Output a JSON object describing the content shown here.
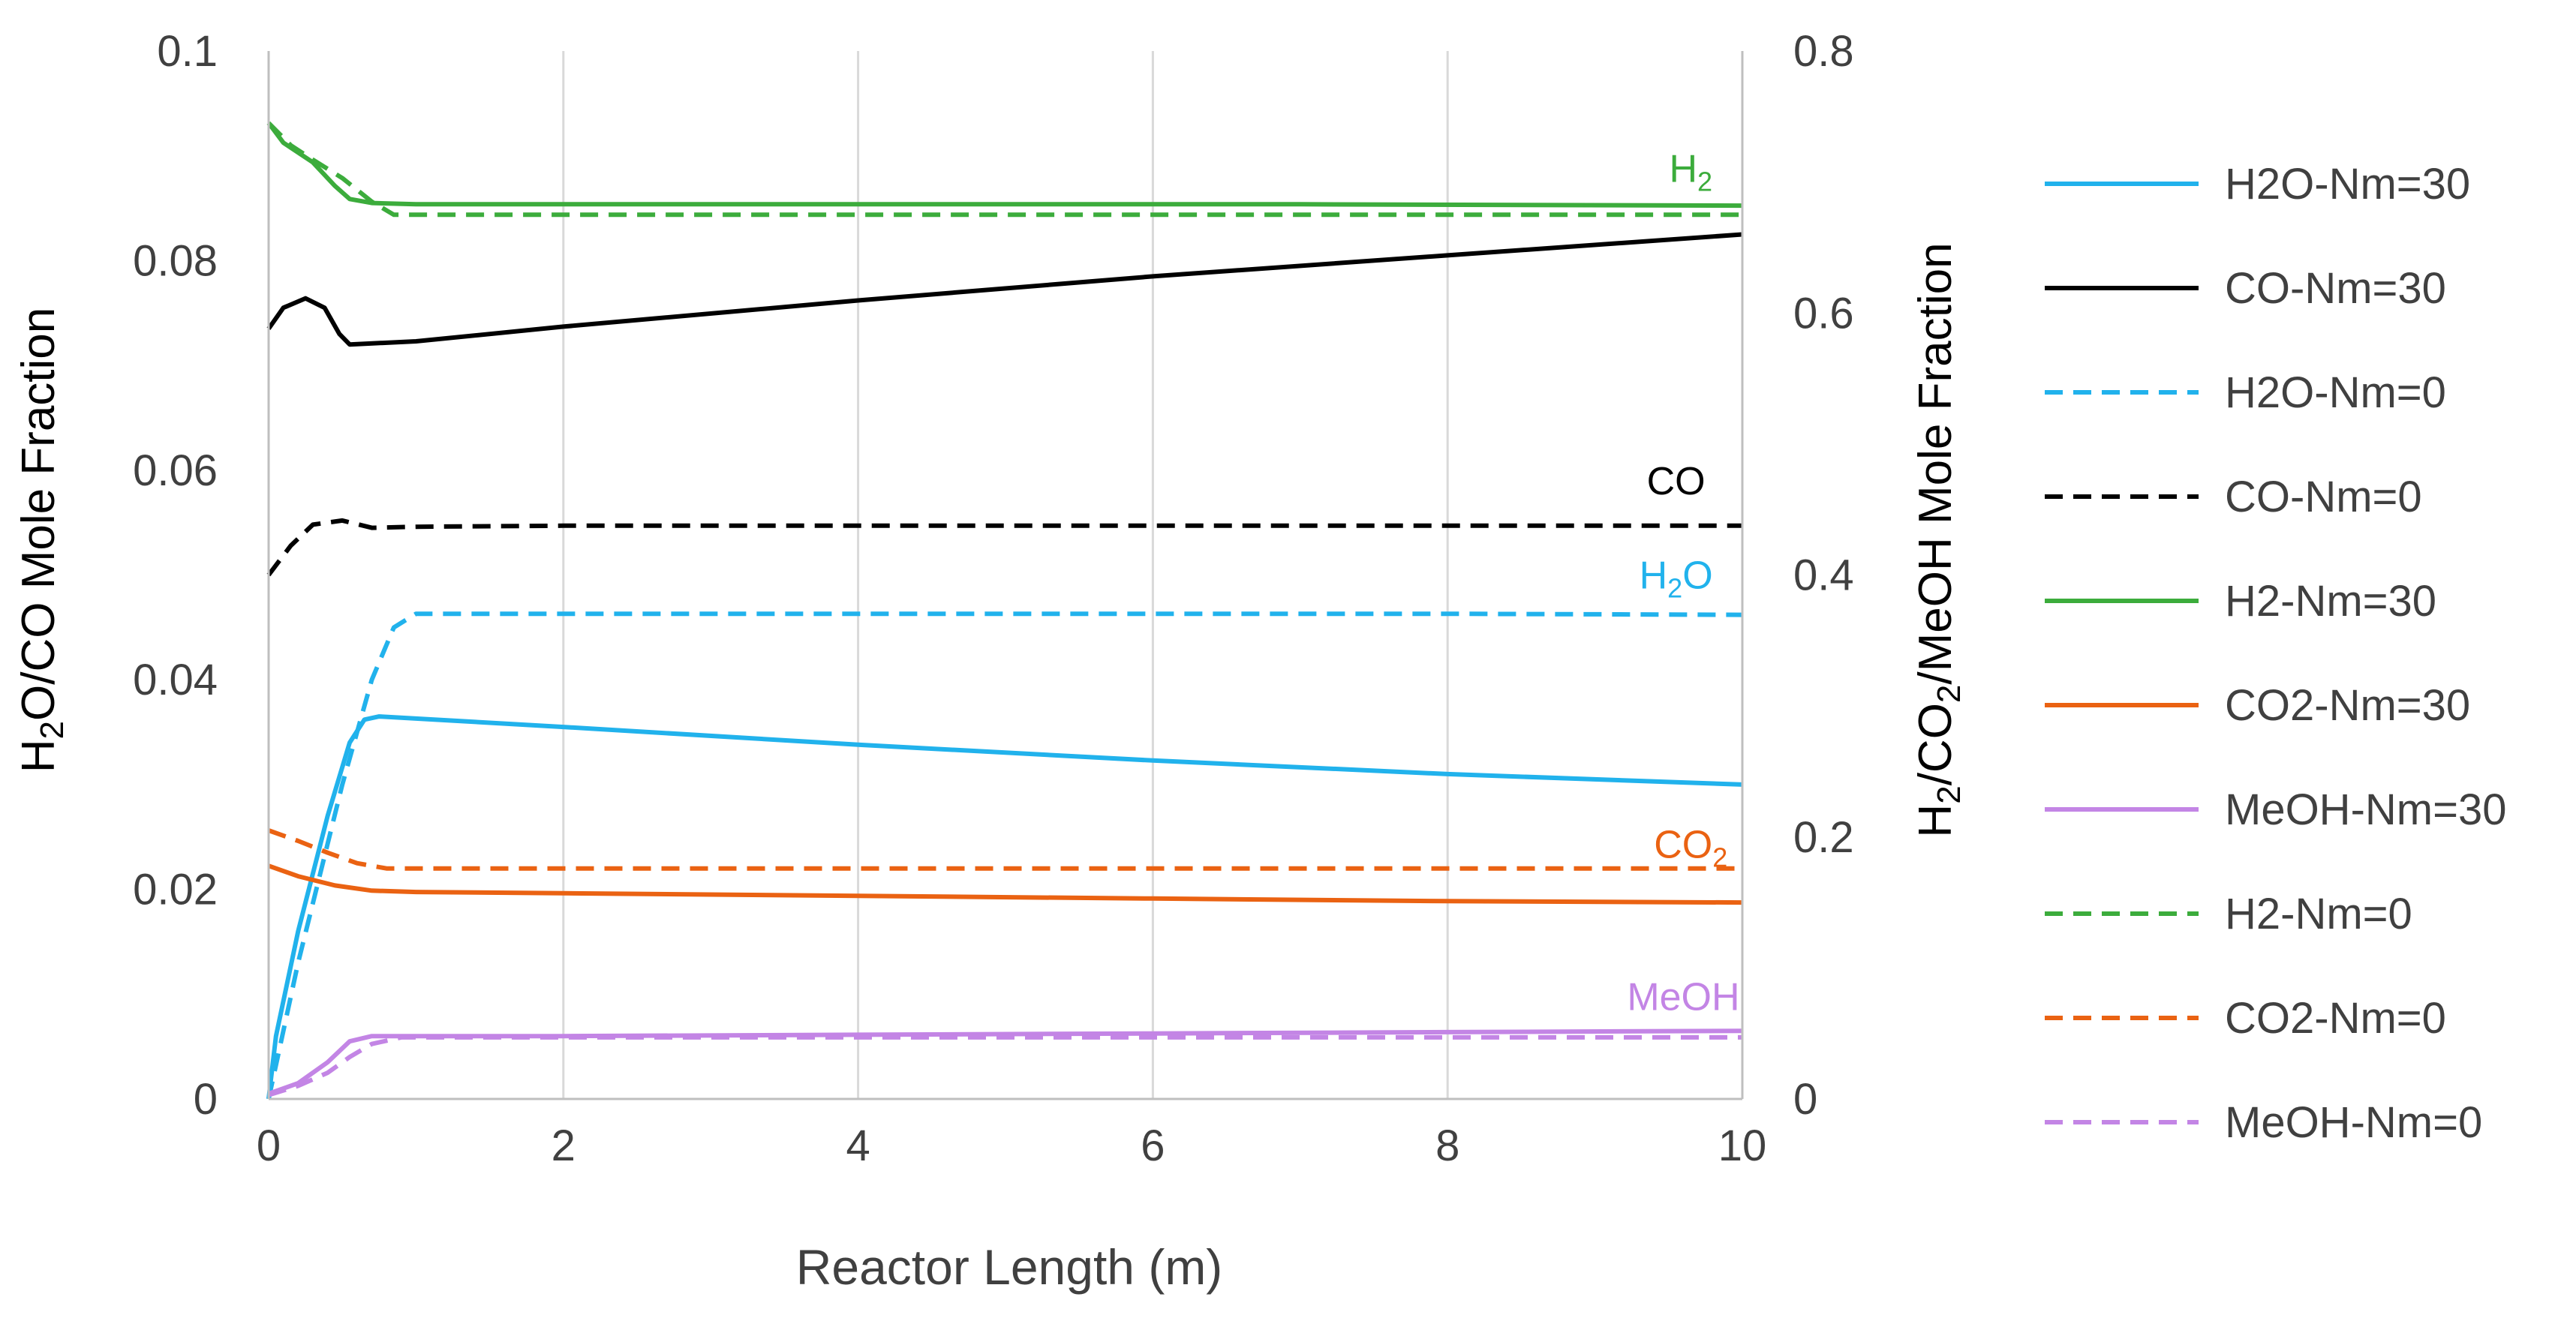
{
  "chart_data": {
    "type": "line",
    "xlabel": "Reactor Length (m)",
    "ylabel_left": {
      "main": "H",
      "sub1": "2",
      "mid": "O/CO  Mole Fraction"
    },
    "ylabel_right": {
      "p1": "H",
      "s1": "2",
      "p2": "/CO",
      "s2": "2",
      "p3": "/MeOH Mole Fraction"
    },
    "xlim": [
      0,
      10
    ],
    "ylim_left": [
      0,
      0.1
    ],
    "ylim_right": [
      0,
      0.8
    ],
    "x_ticks": [
      0,
      2,
      4,
      6,
      8,
      10
    ],
    "x_tick_labels": [
      "0",
      "2",
      "4",
      "6",
      "8",
      "10"
    ],
    "y_left_ticks": [
      0,
      0.02,
      0.04,
      0.06,
      0.08,
      0.1
    ],
    "y_left_tick_labels": [
      "0",
      "0.02",
      "0.04",
      "0.06",
      "0.08",
      "0.1"
    ],
    "y_right_ticks": [
      0,
      0.2,
      0.4,
      0.6,
      0.8
    ],
    "y_right_tick_labels": [
      "0",
      "0.2",
      "0.4",
      "0.6",
      "0.8"
    ],
    "grid": "vertical",
    "legend_position": "right",
    "series": [
      {
        "name": "H2O-Nm=30",
        "axis": "left",
        "color": "#21b2ec",
        "dash": false,
        "points": [
          [
            0,
            0
          ],
          [
            0.05,
            0.006
          ],
          [
            0.2,
            0.016
          ],
          [
            0.4,
            0.027
          ],
          [
            0.55,
            0.034
          ],
          [
            0.65,
            0.0362
          ],
          [
            0.75,
            0.0365
          ],
          [
            2,
            0.0355
          ],
          [
            4,
            0.0338
          ],
          [
            6,
            0.0323
          ],
          [
            8,
            0.031
          ],
          [
            10,
            0.03
          ]
        ]
      },
      {
        "name": "CO-Nm=30",
        "axis": "left",
        "color": "#000000",
        "dash": false,
        "points": [
          [
            0,
            0.0735
          ],
          [
            0.1,
            0.0755
          ],
          [
            0.25,
            0.0764
          ],
          [
            0.38,
            0.0755
          ],
          [
            0.48,
            0.073
          ],
          [
            0.55,
            0.072
          ],
          [
            1,
            0.0723
          ],
          [
            2,
            0.0737
          ],
          [
            4,
            0.0762
          ],
          [
            6,
            0.0785
          ],
          [
            8,
            0.0805
          ],
          [
            10,
            0.0825
          ]
        ]
      },
      {
        "name": "H2O-Nm=0",
        "axis": "left",
        "color": "#21b2ec",
        "dash": true,
        "points": [
          [
            0,
            0
          ],
          [
            0.2,
            0.013
          ],
          [
            0.5,
            0.03
          ],
          [
            0.7,
            0.04
          ],
          [
            0.85,
            0.045
          ],
          [
            1,
            0.0463
          ],
          [
            2,
            0.0463
          ],
          [
            4,
            0.0463
          ],
          [
            6,
            0.0463
          ],
          [
            8,
            0.0463
          ],
          [
            10,
            0.0462
          ]
        ]
      },
      {
        "name": "CO-Nm=0",
        "axis": "left",
        "color": "#000000",
        "dash": true,
        "points": [
          [
            0,
            0.05
          ],
          [
            0.15,
            0.0528
          ],
          [
            0.3,
            0.0548
          ],
          [
            0.5,
            0.0552
          ],
          [
            0.7,
            0.0545
          ],
          [
            1,
            0.0546
          ],
          [
            2,
            0.0547
          ],
          [
            4,
            0.0547
          ],
          [
            6,
            0.0547
          ],
          [
            8,
            0.0547
          ],
          [
            10,
            0.0547
          ]
        ]
      },
      {
        "name": "H2-Nm=30",
        "axis": "right",
        "color": "#3cac3c",
        "dash": false,
        "points": [
          [
            0,
            0.745
          ],
          [
            0.1,
            0.73
          ],
          [
            0.3,
            0.715
          ],
          [
            0.45,
            0.697
          ],
          [
            0.55,
            0.687
          ],
          [
            0.7,
            0.684
          ],
          [
            1,
            0.683
          ],
          [
            4,
            0.683
          ],
          [
            7,
            0.683
          ],
          [
            10,
            0.682
          ]
        ]
      },
      {
        "name": "CO2-Nm=30",
        "axis": "right",
        "color": "#ea6212",
        "dash": false,
        "points": [
          [
            0,
            0.178
          ],
          [
            0.2,
            0.17
          ],
          [
            0.45,
            0.163
          ],
          [
            0.7,
            0.159
          ],
          [
            1,
            0.158
          ],
          [
            2,
            0.157
          ],
          [
            4,
            0.155
          ],
          [
            6,
            0.153
          ],
          [
            8,
            0.151
          ],
          [
            10,
            0.15
          ]
        ]
      },
      {
        "name": "MeOH-Nm=30",
        "axis": "right",
        "color": "#c385e5",
        "dash": false,
        "points": [
          [
            0,
            0.004
          ],
          [
            0.2,
            0.012
          ],
          [
            0.4,
            0.028
          ],
          [
            0.55,
            0.044
          ],
          [
            0.7,
            0.048
          ],
          [
            1,
            0.048
          ],
          [
            2,
            0.048
          ],
          [
            4,
            0.049
          ],
          [
            6,
            0.05
          ],
          [
            8,
            0.051
          ],
          [
            10,
            0.052
          ]
        ]
      },
      {
        "name": "H2-Nm=0",
        "axis": "right",
        "color": "#3cac3c",
        "dash": true,
        "points": [
          [
            0,
            0.745
          ],
          [
            0.15,
            0.728
          ],
          [
            0.3,
            0.717
          ],
          [
            0.5,
            0.703
          ],
          [
            0.7,
            0.685
          ],
          [
            0.85,
            0.675
          ],
          [
            1,
            0.675
          ],
          [
            4,
            0.675
          ],
          [
            7,
            0.675
          ],
          [
            10,
            0.675
          ]
        ]
      },
      {
        "name": "CO2-Nm=0",
        "axis": "right",
        "color": "#ea6212",
        "dash": true,
        "points": [
          [
            0,
            0.205
          ],
          [
            0.2,
            0.197
          ],
          [
            0.4,
            0.188
          ],
          [
            0.6,
            0.18
          ],
          [
            0.8,
            0.176
          ],
          [
            1,
            0.176
          ],
          [
            4,
            0.176
          ],
          [
            7,
            0.176
          ],
          [
            10,
            0.176
          ]
        ]
      },
      {
        "name": "MeOH-Nm=0",
        "axis": "right",
        "color": "#c385e5",
        "dash": true,
        "points": [
          [
            0,
            0.003
          ],
          [
            0.2,
            0.01
          ],
          [
            0.4,
            0.02
          ],
          [
            0.55,
            0.032
          ],
          [
            0.7,
            0.042
          ],
          [
            0.9,
            0.047
          ],
          [
            1,
            0.047
          ],
          [
            4,
            0.047
          ],
          [
            7,
            0.047
          ],
          [
            10,
            0.047
          ]
        ]
      }
    ],
    "annotations": [
      {
        "label": "H",
        "sub": "2",
        "color": "#3cac3c",
        "x": 9.65,
        "y": 0.7,
        "axis": "right"
      },
      {
        "label": "CO",
        "sub": "",
        "color": "#000000",
        "x": 9.55,
        "y": 0.0577,
        "axis": "left"
      },
      {
        "label": "H",
        "sub": "2",
        "post": "O",
        "color": "#21b2ec",
        "x": 9.55,
        "y": 0.0487,
        "axis": "left"
      },
      {
        "label": "CO",
        "sub": "2",
        "color": "#ea6212",
        "x": 9.65,
        "y": 0.023,
        "axis": "left"
      },
      {
        "label": "MeOH",
        "sub": "",
        "color": "#c385e5",
        "x": 9.6,
        "y": 0.0085,
        "axis": "left"
      }
    ]
  }
}
